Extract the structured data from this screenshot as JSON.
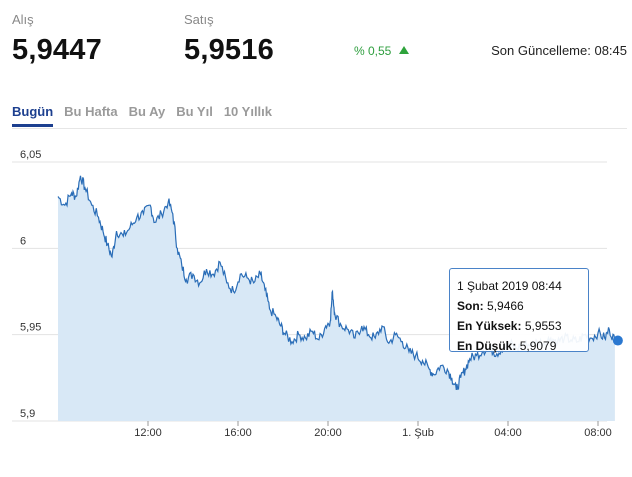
{
  "quote": {
    "bid_label": "Alış",
    "bid_value": "5,9447",
    "ask_label": "Satış",
    "ask_value": "5,9516",
    "change": "% 0,55",
    "last_update": "Son Güncelleme: 08:45"
  },
  "tabs": [
    {
      "label": "Bugün",
      "active": true
    },
    {
      "label": "Bu Hafta",
      "active": false
    },
    {
      "label": "Bu Ay",
      "active": false
    },
    {
      "label": "Bu Yıl",
      "active": false
    },
    {
      "label": "10 Yıllık",
      "active": false
    }
  ],
  "colors": {
    "line": "#2a6db7",
    "area": "#d8e8f6",
    "accent": "#1c3f8f",
    "up": "#2ea33b"
  },
  "tooltip": {
    "date": "1 Şubat 2019 08:44",
    "last_label": "Son:",
    "last_value": "5,9466",
    "high_label": "En Yüksek:",
    "high_value": "5,9553",
    "low_label": "En Düşük:",
    "low_value": "5,9079"
  },
  "chart_data": {
    "type": "area",
    "x_unit": "hour",
    "ylim": [
      5.9,
      6.05
    ],
    "yticks": [
      5.9,
      5.95,
      6.0,
      6.05
    ],
    "ytick_labels": [
      "5,9",
      "5,95",
      "6",
      "6,05"
    ],
    "xtick_hours": [
      12,
      16,
      20,
      24,
      28,
      32
    ],
    "xtick_labels": [
      "12:00",
      "16:00",
      "20:00",
      "1. Şub",
      "04:00",
      "08:00"
    ],
    "grid": "horizontal",
    "series": [
      {
        "points": [
          [
            8.0,
            6.03
          ],
          [
            8.3,
            6.025
          ],
          [
            8.6,
            6.032
          ],
          [
            8.8,
            6.03
          ],
          [
            9.0,
            6.042
          ],
          [
            9.2,
            6.035
          ],
          [
            9.5,
            6.025
          ],
          [
            9.8,
            6.018
          ],
          [
            10.0,
            6.01
          ],
          [
            10.2,
            6.002
          ],
          [
            10.4,
            5.995
          ],
          [
            10.6,
            6.01
          ],
          [
            10.9,
            6.007
          ],
          [
            11.2,
            6.012
          ],
          [
            11.5,
            6.018
          ],
          [
            11.8,
            6.02
          ],
          [
            12.1,
            6.025
          ],
          [
            12.3,
            6.015
          ],
          [
            12.6,
            6.02
          ],
          [
            12.9,
            6.027
          ],
          [
            13.1,
            6.02
          ],
          [
            13.3,
            6.0
          ],
          [
            13.5,
            5.99
          ],
          [
            13.7,
            5.982
          ],
          [
            14.0,
            5.985
          ],
          [
            14.3,
            5.98
          ],
          [
            14.6,
            5.988
          ],
          [
            14.9,
            5.985
          ],
          [
            15.2,
            5.992
          ],
          [
            15.5,
            5.98
          ],
          [
            15.8,
            5.975
          ],
          [
            16.1,
            5.985
          ],
          [
            16.4,
            5.983
          ],
          [
            16.7,
            5.98
          ],
          [
            17.0,
            5.985
          ],
          [
            17.2,
            5.976
          ],
          [
            17.4,
            5.965
          ],
          [
            17.7,
            5.96
          ],
          [
            17.9,
            5.955
          ],
          [
            18.1,
            5.95
          ],
          [
            18.4,
            5.946
          ],
          [
            18.7,
            5.95
          ],
          [
            19.0,
            5.948
          ],
          [
            19.3,
            5.952
          ],
          [
            19.6,
            5.947
          ],
          [
            19.9,
            5.955
          ],
          [
            20.1,
            5.958
          ],
          [
            20.2,
            5.975
          ],
          [
            20.3,
            5.962
          ],
          [
            20.6,
            5.955
          ],
          [
            20.9,
            5.953
          ],
          [
            21.2,
            5.948
          ],
          [
            21.5,
            5.955
          ],
          [
            21.8,
            5.95
          ],
          [
            22.1,
            5.948
          ],
          [
            22.4,
            5.955
          ],
          [
            22.7,
            5.945
          ],
          [
            23.0,
            5.95
          ],
          [
            23.3,
            5.946
          ],
          [
            23.6,
            5.94
          ],
          [
            23.9,
            5.938
          ],
          [
            24.2,
            5.935
          ],
          [
            24.5,
            5.93
          ],
          [
            24.7,
            5.927
          ],
          [
            25.0,
            5.932
          ],
          [
            25.3,
            5.93
          ],
          [
            25.5,
            5.925
          ],
          [
            25.7,
            5.918
          ],
          [
            25.9,
            5.925
          ],
          [
            26.1,
            5.93
          ],
          [
            26.3,
            5.936
          ],
          [
            26.6,
            5.938
          ],
          [
            26.9,
            5.941
          ],
          [
            27.2,
            5.942
          ],
          [
            27.5,
            5.939
          ],
          [
            27.8,
            5.943
          ],
          [
            28.1,
            5.945
          ],
          [
            28.4,
            5.942
          ],
          [
            28.7,
            5.945
          ],
          [
            29.0,
            5.944
          ],
          [
            29.3,
            5.946
          ],
          [
            29.6,
            5.945
          ],
          [
            29.9,
            5.948
          ],
          [
            30.2,
            5.946
          ],
          [
            30.5,
            5.948
          ],
          [
            30.8,
            5.947
          ],
          [
            31.1,
            5.946
          ],
          [
            31.4,
            5.95
          ],
          [
            31.7,
            5.948
          ],
          [
            32.0,
            5.951
          ],
          [
            32.3,
            5.948
          ],
          [
            32.5,
            5.953
          ],
          [
            32.75,
            5.9466
          ]
        ]
      }
    ]
  }
}
